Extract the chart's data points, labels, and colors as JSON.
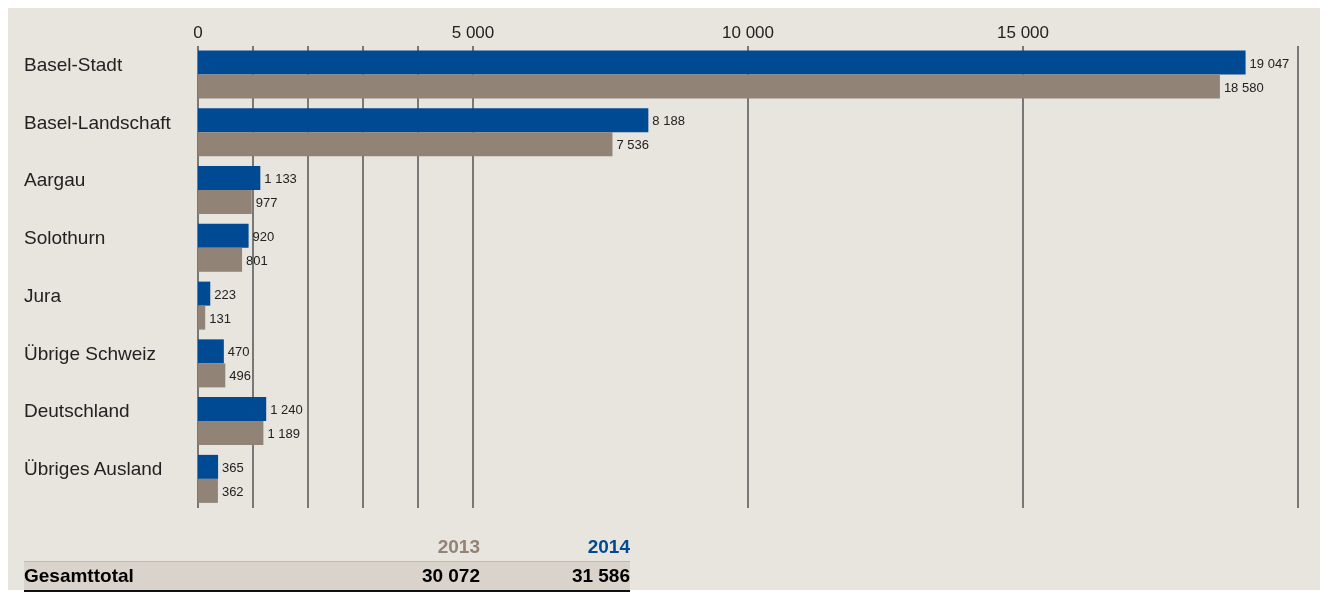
{
  "chart_data": {
    "type": "bar",
    "orientation": "horizontal",
    "categories": [
      "Basel-Stadt",
      "Basel-Landschaft",
      "Aargau",
      "Solothurn",
      "Jura",
      "Übrige Schweiz",
      "Deutschland",
      "Übriges Ausland"
    ],
    "series": [
      {
        "name": "2014",
        "color": "#004a93",
        "values": [
          19047,
          8188,
          1133,
          920,
          223,
          470,
          1240,
          365
        ],
        "value_labels": [
          "19 047",
          "8 188",
          "1 133",
          "920",
          "223",
          "470",
          "1 240",
          "365"
        ]
      },
      {
        "name": "2013",
        "color": "#918376",
        "values": [
          18580,
          7536,
          977,
          801,
          131,
          496,
          1189,
          362
        ],
        "value_labels": [
          "18 580",
          "7 536",
          "977",
          "801",
          "131",
          "496",
          "1 189",
          "362"
        ]
      }
    ],
    "xlim": [
      0,
      20000
    ],
    "xticks": [
      0,
      {
        "value": 1000,
        "label": null
      },
      {
        "value": 2000,
        "label": null
      },
      {
        "value": 3000,
        "label": null
      },
      {
        "value": 4000,
        "label": null
      },
      {
        "value": 5000,
        "label": "5 000"
      },
      {
        "value": 10000,
        "label": "10 000"
      },
      {
        "value": 15000,
        "label": "15 000"
      },
      {
        "value": 20000,
        "label": null
      }
    ],
    "grid": "x",
    "legend": "bottom left",
    "annotations": [
      "Gesamttotal",
      "30 072",
      "31 586"
    ]
  }
}
